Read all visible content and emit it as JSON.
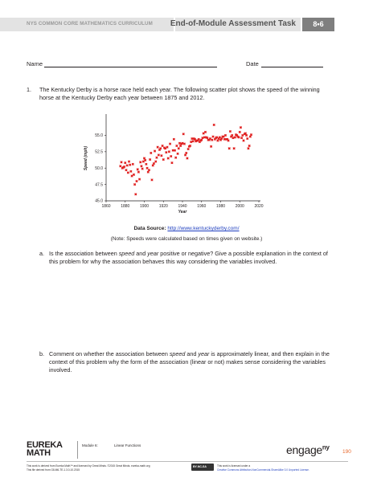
{
  "header": {
    "curriculum": "NYS COMMON CORE MATHEMATICS CURRICULUM",
    "task": "End-of-Module Assessment Task",
    "lesson": "8•6"
  },
  "form": {
    "name_label": "Name",
    "date_label": "Date"
  },
  "question": {
    "number": "1.",
    "text": "The Kentucky Derby is a horse race held each year.  The following scatter plot shows the speed of the winning horse at the Kentucky Derby each year between 1875 and 2012."
  },
  "chart_data": {
    "type": "scatter",
    "xlabel": "Year",
    "ylabel": "Speed (mph)",
    "xlim": [
      1860,
      2020
    ],
    "ylim": [
      45.0,
      58.0
    ],
    "x_ticks": [
      "1860",
      "1880",
      "1900",
      "1920",
      "1940",
      "1960",
      "1980",
      "2000",
      "2020"
    ],
    "y_ticks": [
      "45.0",
      "47.5",
      "50.0",
      "52.5",
      "55.0"
    ],
    "grid": false,
    "marker_color": "#e02020",
    "points": [
      [
        1875,
        50.3
      ],
      [
        1876,
        50.9
      ],
      [
        1877,
        50.0
      ],
      [
        1878,
        50.1
      ],
      [
        1879,
        50.2
      ],
      [
        1880,
        50.8
      ],
      [
        1881,
        49.7
      ],
      [
        1882,
        50.4
      ],
      [
        1883,
        49.3
      ],
      [
        1884,
        51.0
      ],
      [
        1885,
        50.5
      ],
      [
        1886,
        49.5
      ],
      [
        1887,
        48.8
      ],
      [
        1888,
        50.6
      ],
      [
        1889,
        49.0
      ],
      [
        1890,
        47.5
      ],
      [
        1891,
        46.0
      ],
      [
        1892,
        48.0
      ],
      [
        1893,
        49.8
      ],
      [
        1894,
        49.4
      ],
      [
        1895,
        48.3
      ],
      [
        1896,
        50.9
      ],
      [
        1897,
        50.3
      ],
      [
        1898,
        49.9
      ],
      [
        1899,
        51.0
      ],
      [
        1900,
        51.5
      ],
      [
        1901,
        51.2
      ],
      [
        1902,
        50.6
      ],
      [
        1903,
        50.0
      ],
      [
        1904,
        49.4
      ],
      [
        1905,
        49.7
      ],
      [
        1906,
        51.3
      ],
      [
        1907,
        52.3
      ],
      [
        1908,
        48.2
      ],
      [
        1909,
        50.4
      ],
      [
        1910,
        50.7
      ],
      [
        1911,
        52.6
      ],
      [
        1912,
        51.0
      ],
      [
        1913,
        51.6
      ],
      [
        1914,
        53.2
      ],
      [
        1915,
        52.0
      ],
      [
        1916,
        52.8
      ],
      [
        1917,
        53.0
      ],
      [
        1918,
        51.9
      ],
      [
        1919,
        53.4
      ],
      [
        1920,
        51.3
      ],
      [
        1921,
        53.1
      ],
      [
        1922,
        53.0
      ],
      [
        1923,
        52.4
      ],
      [
        1924,
        53.2
      ],
      [
        1925,
        51.5
      ],
      [
        1926,
        52.5
      ],
      [
        1927,
        53.7
      ],
      [
        1928,
        51.8
      ],
      [
        1929,
        50.8
      ],
      [
        1930,
        52.7
      ],
      [
        1931,
        54.4
      ],
      [
        1932,
        52.7
      ],
      [
        1933,
        51.6
      ],
      [
        1934,
        53.4
      ],
      [
        1935,
        52.2
      ],
      [
        1936,
        53.0
      ],
      [
        1937,
        53.8
      ],
      [
        1938,
        53.4
      ],
      [
        1939,
        53.7
      ],
      [
        1940,
        53.8
      ],
      [
        1941,
        55.2
      ],
      [
        1942,
        53.7
      ],
      [
        1943,
        52.0
      ],
      [
        1944,
        52.3
      ],
      [
        1945,
        51.5
      ],
      [
        1946,
        52.9
      ],
      [
        1947,
        53.3
      ],
      [
        1948,
        53.4
      ],
      [
        1949,
        54.0
      ],
      [
        1950,
        54.5
      ],
      [
        1951,
        54.1
      ],
      [
        1952,
        54.5
      ],
      [
        1953,
        54.4
      ],
      [
        1954,
        54.1
      ],
      [
        1955,
        54.2
      ],
      [
        1956,
        54.2
      ],
      [
        1957,
        54.4
      ],
      [
        1958,
        54.0
      ],
      [
        1959,
        54.2
      ],
      [
        1960,
        54.3
      ],
      [
        1961,
        54.6
      ],
      [
        1962,
        55.3
      ],
      [
        1963,
        54.7
      ],
      [
        1964,
        55.5
      ],
      [
        1965,
        54.7
      ],
      [
        1966,
        54.6
      ],
      [
        1967,
        54.3
      ],
      [
        1968,
        54.3
      ],
      [
        1969,
        54.5
      ],
      [
        1970,
        53.3
      ],
      [
        1971,
        54.3
      ],
      [
        1972,
        54.8
      ],
      [
        1973,
        56.6
      ],
      [
        1974,
        54.4
      ],
      [
        1975,
        54.6
      ],
      [
        1976,
        54.7
      ],
      [
        1977,
        54.2
      ],
      [
        1978,
        54.5
      ],
      [
        1979,
        54.7
      ],
      [
        1980,
        54.3
      ],
      [
        1981,
        54.5
      ],
      [
        1982,
        54.8
      ],
      [
        1983,
        54.8
      ],
      [
        1984,
        54.4
      ],
      [
        1985,
        55.0
      ],
      [
        1986,
        54.4
      ],
      [
        1987,
        54.4
      ],
      [
        1988,
        54.2
      ],
      [
        1989,
        53.0
      ],
      [
        1990,
        55.6
      ],
      [
        1991,
        54.8
      ],
      [
        1992,
        55.0
      ],
      [
        1993,
        54.6
      ],
      [
        1994,
        53.0
      ],
      [
        1995,
        54.7
      ],
      [
        1996,
        55.1
      ],
      [
        1997,
        55.0
      ],
      [
        1998,
        54.8
      ],
      [
        1999,
        54.7
      ],
      [
        2000,
        55.5
      ],
      [
        2001,
        56.2
      ],
      [
        2002,
        54.6
      ],
      [
        2003,
        55.0
      ],
      [
        2004,
        54.2
      ],
      [
        2005,
        55.2
      ],
      [
        2006,
        55.3
      ],
      [
        2007,
        55.0
      ],
      [
        2008,
        54.5
      ],
      [
        2009,
        53.0
      ],
      [
        2010,
        53.4
      ],
      [
        2011,
        54.8
      ],
      [
        2012,
        55.1
      ]
    ]
  },
  "source": {
    "label": "Data Source:",
    "link": "http://www.kentuckyderby.com/"
  },
  "note": "(Note:  Speeds were calculated based on times given on website.)",
  "part_a": {
    "label": "a.",
    "before_1": "Is the association between ",
    "term_1": "speed",
    "mid_1": " and ",
    "term_2": "year",
    "after_1": " positive or negative?  Give a possible explanation in the context of this problem for why the association behaves this way considering the variables involved."
  },
  "part_b": {
    "label": "b.",
    "before_1": "Comment on whether the association between ",
    "term_1": "speed",
    "mid_1": " and ",
    "term_2": "year",
    "after_1": " is approximately linear, and then explain in the context of this problem why the form of the association (linear or not) makes sense considering the variables involved."
  },
  "footer": {
    "brand_line1": "EUREKA",
    "brand_line2": "MATH",
    "module": "Module 6:",
    "topic": "Linear Functions",
    "engage": "engage",
    "engage_sup": "ny",
    "page": "190",
    "fine1": "This work is derived from Eureka Math™ and licensed by Great Minds. ©2015 Great Minds. eureka-math.org",
    "fine2": "This file derived from G8-M6-TE-1.3.0-10.2015",
    "cc": "BY-NC-SA",
    "license1": "This work is licensed under a",
    "license2": "Creative Commons Attribution-NonCommercial-ShareAlike 3.0 Unported License."
  }
}
